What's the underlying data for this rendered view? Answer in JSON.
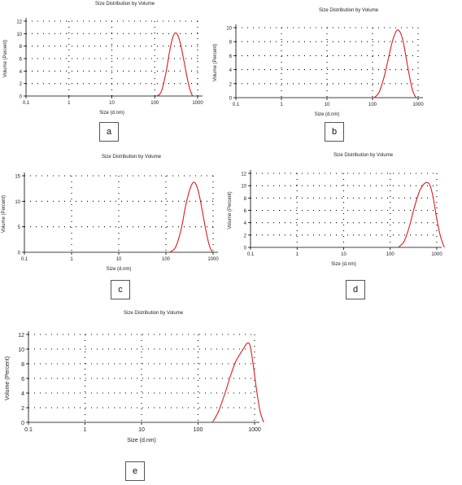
{
  "chart_data": [
    {
      "type": "line",
      "title": "Size Distribution by Volume",
      "xlabel": "Size (d.nm)",
      "ylabel": "Volume (Percent)",
      "xscale": "log",
      "xlim": [
        0.1,
        1000
      ],
      "ylim": [
        0,
        12
      ],
      "xticks": [
        "0.1",
        "1",
        "10",
        "100",
        "1000"
      ],
      "yticks": [
        "0",
        "2",
        "4",
        "6",
        "8",
        "10",
        "12"
      ],
      "grid": "dotted",
      "panel_label": "a",
      "series": [
        {
          "color": "#e31a1c",
          "x": [
            110,
            140,
            180,
            220,
            260,
            300,
            340,
            400,
            480,
            560,
            650,
            760
          ],
          "y": [
            0,
            0.6,
            3.5,
            7,
            9.3,
            10.1,
            9.8,
            8.3,
            5.6,
            3.2,
            1.2,
            0
          ]
        }
      ]
    },
    {
      "type": "line",
      "title": "Size Distribution by Volume",
      "xlabel": "Size (d.nm)",
      "ylabel": "Volume (Percent)",
      "xscale": "log",
      "xlim": [
        0.1,
        1000
      ],
      "ylim": [
        0,
        10
      ],
      "xticks": [
        "0.1",
        "1",
        "10",
        "100",
        "1000"
      ],
      "yticks": [
        "0",
        "2",
        "4",
        "6",
        "8",
        "10"
      ],
      "grid": "dotted",
      "panel_label": "b",
      "series": [
        {
          "color": "#e31a1c",
          "x": [
            110,
            140,
            180,
            230,
            280,
            340,
            400,
            470,
            550,
            650,
            760,
            900
          ],
          "y": [
            0,
            0.8,
            3,
            6,
            8.3,
            9.6,
            9.4,
            8,
            5.6,
            3,
            1,
            0
          ]
        }
      ]
    },
    {
      "type": "line",
      "title": "Size Distribution by Volume",
      "xlabel": "Size (d.nm)",
      "ylabel": "Volume (Percent)",
      "xscale": "log",
      "xlim": [
        0.1,
        1000
      ],
      "ylim": [
        0,
        15
      ],
      "xticks": [
        "0.1",
        "1",
        "10",
        "100",
        "1000"
      ],
      "yticks": [
        "0",
        "5",
        "10",
        "15"
      ],
      "grid": "dotted",
      "panel_label": "c",
      "series": [
        {
          "color": "#e31a1c",
          "x": [
            120,
            160,
            210,
            260,
            320,
            380,
            440,
            520,
            620,
            720,
            840,
            960
          ],
          "y": [
            0,
            1,
            4.5,
            9,
            12.3,
            13.7,
            13.2,
            10.8,
            7,
            3.8,
            1.2,
            0
          ]
        }
      ]
    },
    {
      "type": "line",
      "title": "Size Distribution by Volume",
      "xlabel": "Size (d.nm)",
      "ylabel": "Volume (Percent)",
      "xscale": "log",
      "xlim": [
        0.1,
        1000
      ],
      "ylim": [
        0,
        12
      ],
      "xticks": [
        "0.1",
        "1",
        "10",
        "100",
        "1000"
      ],
      "yticks": [
        "0",
        "2",
        "4",
        "6",
        "8",
        "10",
        "12"
      ],
      "grid": "dotted",
      "panel_label": "d",
      "series": [
        {
          "color": "#e31a1c",
          "x": [
            150,
            200,
            260,
            330,
            420,
            520,
            620,
            720,
            850,
            1000,
            1200,
            1450
          ],
          "y": [
            0,
            1,
            3.5,
            6.5,
            9,
            10.2,
            10.5,
            10,
            7.8,
            4.6,
            1.8,
            0
          ]
        }
      ]
    },
    {
      "type": "line",
      "title": "Size Distribution by Volume",
      "xlabel": "Size (d.nm)",
      "ylabel": "Volume (Percent)",
      "xscale": "log",
      "xlim": [
        0.1,
        1000
      ],
      "ylim": [
        0,
        12
      ],
      "xticks": [
        "0.1",
        "1",
        "10",
        "100",
        "1000"
      ],
      "yticks": [
        "0",
        "2",
        "4",
        "6",
        "8",
        "10",
        "12"
      ],
      "grid": "dotted",
      "panel_label": "e",
      "series": [
        {
          "color": "#e31a1c",
          "x": [
            180,
            230,
            300,
            380,
            470,
            560,
            650,
            740,
            830,
            940,
            1080,
            1250,
            1450
          ],
          "y": [
            0,
            1.5,
            4,
            6.5,
            8.4,
            9.4,
            10.2,
            10.8,
            10.5,
            8,
            4.5,
            1.5,
            0
          ]
        }
      ]
    }
  ]
}
